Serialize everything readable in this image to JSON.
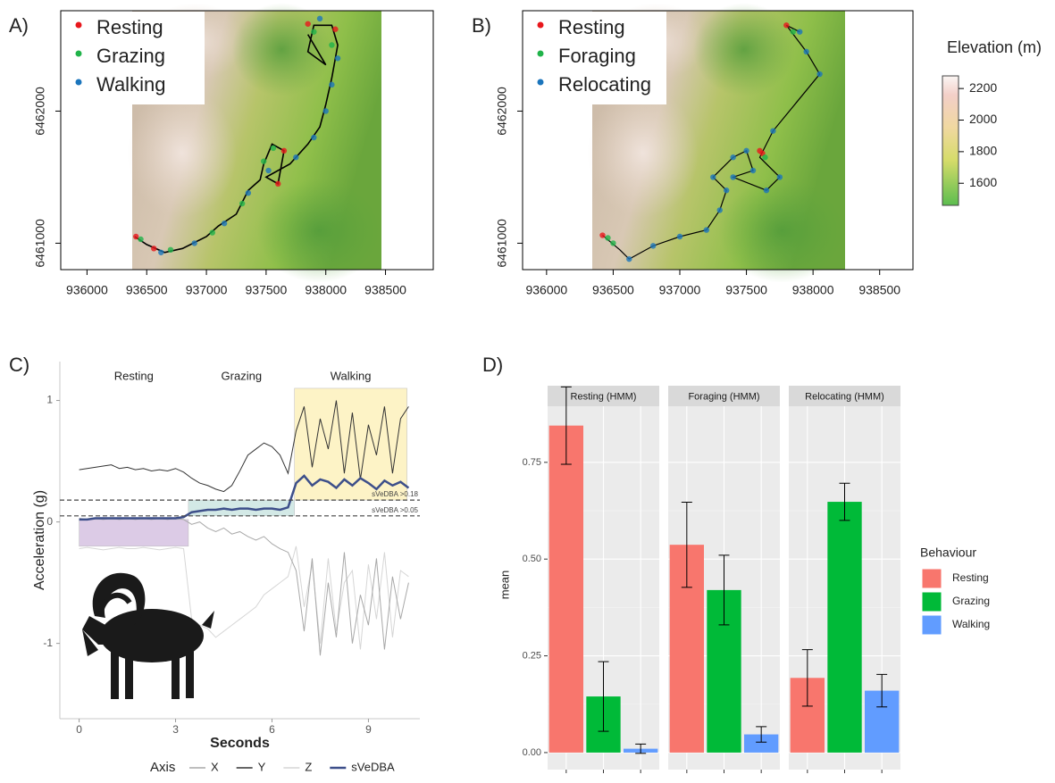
{
  "chart_data": [
    {
      "type": "map",
      "panel_label": "A)",
      "xlim": [
        935780,
        938900
      ],
      "ylim": [
        6460800,
        6462760
      ],
      "xticks": [
        936000,
        936500,
        937000,
        937500,
        938000,
        938500
      ],
      "yticks": [
        6461000,
        6462000
      ],
      "track": {
        "x": [
          936400,
          936500,
          936650,
          936800,
          937000,
          937100,
          937250,
          937350,
          937450,
          937480,
          937550,
          937650,
          937600,
          937500,
          937700,
          937850,
          937950,
          938000,
          938050,
          938100,
          938050,
          937900,
          937850,
          938000,
          937850
        ],
        "y": [
          6461050,
          6460990,
          6460930,
          6460960,
          6461050,
          6461130,
          6461220,
          6461400,
          6461480,
          6461600,
          6461750,
          6461700,
          6461450,
          6461500,
          6461600,
          6461750,
          6461880,
          6462050,
          6462250,
          6462500,
          6462650,
          6462650,
          6462450,
          6462350,
          6462580
        ]
      },
      "series": [
        {
          "name": "Resting",
          "color": "#e8171c",
          "x": [
            936410,
            936560,
            937600,
            937650,
            937850,
            938080
          ],
          "y": [
            6461050,
            6460960,
            6461450,
            6461700,
            6462660,
            6462620
          ]
        },
        {
          "name": "Grazing",
          "color": "#21b34a",
          "x": [
            936450,
            936700,
            937050,
            937300,
            937480,
            937560,
            937900,
            938050
          ],
          "y": [
            6461030,
            6460950,
            6461080,
            6461300,
            6461620,
            6461720,
            6462600,
            6462500
          ]
        },
        {
          "name": "Walking",
          "color": "#1b75bc",
          "x": [
            936620,
            936900,
            937150,
            937350,
            937520,
            937750,
            937900,
            938000,
            938050,
            938100,
            937950
          ],
          "y": [
            6460930,
            6461000,
            6461150,
            6461380,
            6461550,
            6461650,
            6461800,
            6462000,
            6462200,
            6462400,
            6462700
          ]
        }
      ]
    },
    {
      "type": "map",
      "panel_label": "B)",
      "xlim": [
        935820,
        938750
      ],
      "ylim": [
        6460800,
        6462760
      ],
      "xticks": [
        936000,
        936500,
        937000,
        937500,
        938000,
        938500
      ],
      "yticks": [
        6461000,
        6462000
      ],
      "track": {
        "x": [
          936420,
          936550,
          936620,
          936800,
          937000,
          937200,
          937300,
          937350,
          937250,
          937400,
          937500,
          937550,
          937400,
          937650,
          937750,
          937600,
          937700,
          938050,
          937950,
          937800,
          937900
        ],
        "y": [
          6461060,
          6460950,
          6460880,
          6460980,
          6461050,
          6461100,
          6461250,
          6461400,
          6461500,
          6461650,
          6461700,
          6461550,
          6461500,
          6461400,
          6461500,
          6461650,
          6461850,
          6462280,
          6462450,
          6462650,
          6462600
        ]
      },
      "series": [
        {
          "name": "Resting",
          "color": "#e8171c",
          "x": [
            936420,
            937600,
            937800,
            937620
          ],
          "y": [
            6461060,
            6461700,
            6462650,
            6461680
          ]
        },
        {
          "name": "Foraging",
          "color": "#21b34a",
          "x": [
            936460,
            936500,
            937640,
            937850
          ],
          "y": [
            6461040,
            6461000,
            6461650,
            6462600
          ]
        },
        {
          "name": "Relocating",
          "color": "#1b75bc",
          "x": [
            936620,
            936800,
            937000,
            937200,
            937300,
            937350,
            937250,
            937400,
            937500,
            937550,
            937400,
            937650,
            937750,
            937700,
            938050,
            937950,
            937900
          ],
          "y": [
            6460880,
            6460980,
            6461050,
            6461100,
            6461250,
            6461400,
            6461500,
            6461650,
            6461700,
            6461550,
            6461500,
            6461400,
            6461500,
            6461850,
            6462280,
            6462450,
            6462600
          ]
        }
      ],
      "colorbar": {
        "title": "Elevation (m)",
        "lim": [
          1460,
          2280
        ],
        "ticks": [
          1600,
          1800,
          2000,
          2200
        ]
      }
    },
    {
      "type": "line",
      "panel_label": "C)",
      "xlabel": "Seconds",
      "ylabel": "Acceleration (g)",
      "xlim": [
        -0.6,
        10.6
      ],
      "ylim": [
        -1.62,
        1.32
      ],
      "xticks": [
        0,
        3,
        6,
        9
      ],
      "yticks": [
        -1,
        0,
        1
      ],
      "x": [
        0,
        0.25,
        0.5,
        0.75,
        1,
        1.25,
        1.5,
        1.75,
        2,
        2.25,
        2.5,
        2.75,
        3,
        3.25,
        3.5,
        3.75,
        4,
        4.25,
        4.5,
        4.75,
        5,
        5.25,
        5.5,
        5.75,
        6,
        6.25,
        6.5,
        6.75,
        7,
        7.25,
        7.5,
        7.75,
        8,
        8.25,
        8.5,
        8.75,
        9,
        9.25,
        9.5,
        9.75,
        10,
        10.25
      ],
      "regions": [
        {
          "label": "Resting",
          "x": [
            0,
            3.4
          ],
          "y": [
            -0.2,
            0.02
          ],
          "color": "#dccbe6"
        },
        {
          "label": "Grazing",
          "x": [
            3.4,
            6.7
          ],
          "y": [
            0.05,
            0.18
          ],
          "color": "#d3e9e6"
        },
        {
          "label": "Walking",
          "x": [
            6.7,
            10.2
          ],
          "y": [
            0.18,
            1.1
          ],
          "color": "#fdf3c6"
        }
      ],
      "thresholds": [
        {
          "value": 0.18,
          "label": "sVeDBA >0.18"
        },
        {
          "value": 0.05,
          "label": "sVeDBA >0.05"
        }
      ],
      "legend_title": "Axis",
      "series": [
        {
          "name": "X",
          "color": "#a8a8a8",
          "values": [
            0.03,
            0.02,
            0.03,
            0.02,
            0.03,
            0.02,
            0.03,
            0.02,
            0.03,
            0.02,
            0.03,
            0.02,
            0.03,
            0.02,
            -0.02,
            0.0,
            -0.05,
            -0.08,
            -0.05,
            -0.1,
            -0.08,
            -0.12,
            -0.15,
            -0.12,
            -0.18,
            -0.22,
            -0.25,
            -0.4,
            -0.9,
            -0.3,
            -1.1,
            -0.5,
            -0.95,
            -0.25,
            -1.0,
            -0.6,
            -0.85,
            -0.3,
            -1.05,
            -0.45,
            -0.8,
            -0.5
          ]
        },
        {
          "name": "Y",
          "color": "#333333",
          "values": [
            0.43,
            0.44,
            0.45,
            0.46,
            0.47,
            0.44,
            0.45,
            0.43,
            0.44,
            0.42,
            0.43,
            0.42,
            0.44,
            0.41,
            0.36,
            0.32,
            0.3,
            0.27,
            0.25,
            0.3,
            0.42,
            0.55,
            0.6,
            0.65,
            0.62,
            0.55,
            0.4,
            0.75,
            0.95,
            0.45,
            0.85,
            0.6,
            1.0,
            0.4,
            0.9,
            0.35,
            0.8,
            0.55,
            0.95,
            0.4,
            0.85,
            0.95
          ]
        },
        {
          "name": "Z",
          "color": "#d6d6d6",
          "values": [
            -0.22,
            -0.21,
            -0.22,
            -0.23,
            -0.22,
            -0.21,
            -0.22,
            -0.22,
            -0.21,
            -0.22,
            -0.23,
            -0.22,
            -0.21,
            -0.22,
            -0.8,
            -0.85,
            -0.88,
            -0.95,
            -0.9,
            -0.85,
            -0.8,
            -0.75,
            -0.7,
            -0.6,
            -0.55,
            -0.5,
            -0.45,
            -0.2,
            -0.7,
            -0.35,
            -1.0,
            -0.3,
            -0.9,
            -0.5,
            -0.4,
            -1.05,
            -0.35,
            -0.8,
            -0.25,
            -0.95,
            -0.4,
            -0.45
          ]
        },
        {
          "name": "sVeDBA",
          "color": "#3d4f8a",
          "values": [
            0.02,
            0.02,
            0.03,
            0.03,
            0.03,
            0.03,
            0.03,
            0.03,
            0.03,
            0.03,
            0.03,
            0.03,
            0.03,
            0.04,
            0.08,
            0.09,
            0.1,
            0.1,
            0.11,
            0.1,
            0.11,
            0.11,
            0.1,
            0.11,
            0.11,
            0.1,
            0.12,
            0.32,
            0.38,
            0.3,
            0.35,
            0.33,
            0.28,
            0.35,
            0.3,
            0.36,
            0.32,
            0.27,
            0.34,
            0.3,
            0.33,
            0.28
          ]
        }
      ]
    },
    {
      "type": "bar",
      "panel_label": "D)",
      "ylabel": "mean",
      "categories": [
        "Resting (HMM)",
        "Foraging (HMM)",
        "Relocating (HMM)"
      ],
      "ylim": [
        -0.044,
        0.895
      ],
      "yticks": [
        {
          "value": 0,
          "label": "0.00"
        },
        {
          "value": 0.25,
          "label": "0.25"
        },
        {
          "value": 0.5,
          "label": "0.50"
        },
        {
          "value": 0.75,
          "label": "0.75"
        }
      ],
      "legend_title": "Behaviour",
      "series": [
        {
          "name": "Resting",
          "color": "#f8766d",
          "values": [
            0.845,
            0.537,
            0.193
          ],
          "errors": [
            0.1,
            0.11,
            0.073
          ]
        },
        {
          "name": "Grazing",
          "color": "#00ba38",
          "values": [
            0.145,
            0.42,
            0.648
          ],
          "errors": [
            0.09,
            0.09,
            0.048
          ]
        },
        {
          "name": "Walking",
          "color": "#619cff",
          "values": [
            0.01,
            0.047,
            0.16
          ],
          "errors": [
            0.012,
            0.02,
            0.042
          ]
        }
      ]
    }
  ]
}
